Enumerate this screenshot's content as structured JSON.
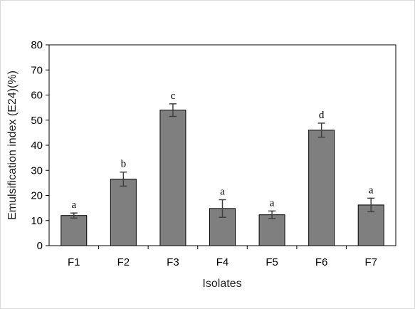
{
  "chart_data": {
    "type": "bar",
    "categories": [
      "F1",
      "F2",
      "F3",
      "F4",
      "F5",
      "F6",
      "F7"
    ],
    "values": [
      12,
      26.5,
      54,
      14.8,
      12.3,
      46,
      16.2
    ],
    "errors": [
      1.0,
      2.8,
      2.5,
      3.5,
      1.5,
      2.8,
      2.7
    ],
    "significance_letters": [
      "a",
      "b",
      "c",
      "a",
      "a",
      "d",
      "a"
    ],
    "xlabel": "Isolates",
    "ylabel": "Emulsification index (E24)(%)",
    "ylim": [
      0,
      80
    ],
    "yticks": [
      "0",
      "10",
      "20",
      "30",
      "40",
      "50",
      "60",
      "70",
      "80"
    ],
    "grid": false,
    "legend": "none",
    "bar_color": "#7f7f7f",
    "error_color": "#404040"
  }
}
